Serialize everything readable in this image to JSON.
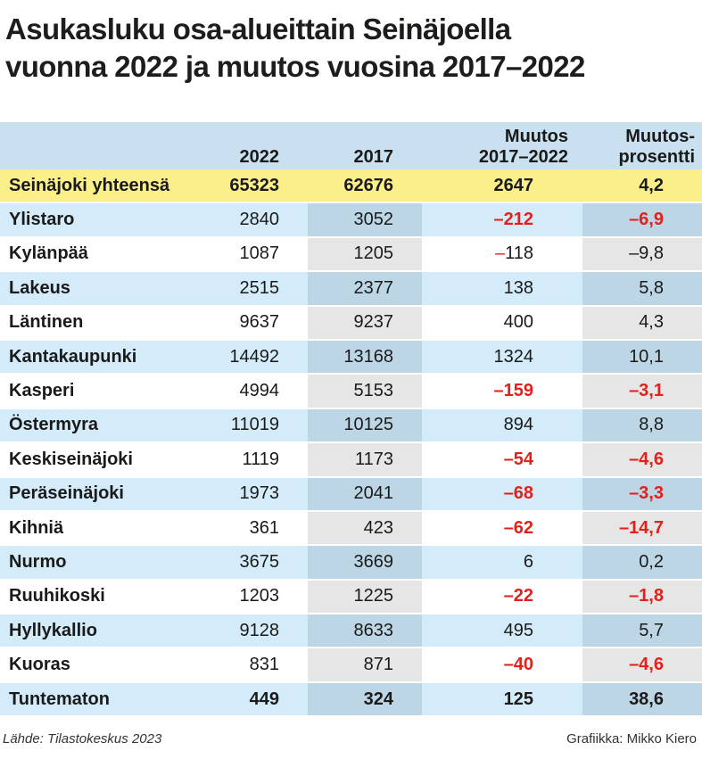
{
  "title_line1": "Asukasluku osa-alueittain Seinäjoella",
  "title_line2": "vuonna 2022 ja muutos vuosina 2017–2022",
  "colors": {
    "header": "#c8e0ef",
    "total_row": "#fbef8a",
    "blue_row": "#d4ecf9",
    "negative": "#e2211c"
  },
  "chart_data": {
    "type": "table",
    "columns": [
      "",
      "2022",
      "2017",
      "Muutos 2017–2022",
      "Muutos-prosentti"
    ],
    "header": {
      "c1": "2022",
      "c2": "2017",
      "c3a": "Muutos",
      "c3b": "2017–2022",
      "c4a": "Muutos-",
      "c4b": "prosentti"
    },
    "rows": [
      {
        "name": "Seinäjoki yhteensä",
        "y2022": "65323",
        "y2017": "62676",
        "change": "2647",
        "pct": "4,2",
        "style": "total"
      },
      {
        "name": "Ylistaro",
        "y2022": "2840",
        "y2017": "3052",
        "change": "–212",
        "pct": "–6,9",
        "style": "blue",
        "neg": true
      },
      {
        "name": "Kylänpää",
        "y2022": "1087",
        "y2017": "1205",
        "change": "–118",
        "pct": "–9,8",
        "style": "white",
        "neg_minus_only": true
      },
      {
        "name": "Lakeus",
        "y2022": "2515",
        "y2017": "2377",
        "change": "138",
        "pct": "5,8",
        "style": "blue"
      },
      {
        "name": "Läntinen",
        "y2022": "9637",
        "y2017": "9237",
        "change": "400",
        "pct": "4,3",
        "style": "white"
      },
      {
        "name": "Kantakaupunki",
        "y2022": "14492",
        "y2017": "13168",
        "change": "1324",
        "pct": "10,1",
        "style": "blue"
      },
      {
        "name": "Kasperi",
        "y2022": "4994",
        "y2017": "5153",
        "change": "–159",
        "pct": "–3,1",
        "style": "white",
        "neg": true
      },
      {
        "name": "Östermyra",
        "y2022": "11019",
        "y2017": "10125",
        "change": "894",
        "pct": "8,8",
        "style": "blue"
      },
      {
        "name": "Keskiseinäjoki",
        "y2022": "1119",
        "y2017": "1173",
        "change": "–54",
        "pct": "–4,6",
        "style": "white",
        "neg": true
      },
      {
        "name": "Peräseinäjoki",
        "y2022": "1973",
        "y2017": "2041",
        "change": "–68",
        "pct": "–3,3",
        "style": "blue",
        "neg": true
      },
      {
        "name": "Kihniä",
        "y2022": "361",
        "y2017": "423",
        "change": "–62",
        "pct": "–14,7",
        "style": "white",
        "neg": true
      },
      {
        "name": "Nurmo",
        "y2022": "3675",
        "y2017": "3669",
        "change": "6",
        "pct": "0,2",
        "style": "blue"
      },
      {
        "name": "Ruuhikoski",
        "y2022": "1203",
        "y2017": "1225",
        "change": "–22",
        "pct": "–1,8",
        "style": "white",
        "neg": true
      },
      {
        "name": "Hyllykallio",
        "y2022": "9128",
        "y2017": "8633",
        "change": "495",
        "pct": "5,7",
        "style": "blue"
      },
      {
        "name": "Kuoras",
        "y2022": "831",
        "y2017": "871",
        "change": "–40",
        "pct": "–4,6",
        "style": "white",
        "neg": true
      },
      {
        "name": "Tuntematon",
        "y2022": "449",
        "y2017": "324",
        "change": "125",
        "pct": "38,6",
        "style": "blue",
        "bold": true
      }
    ]
  },
  "footer": {
    "source": "Lähde: Tilastokeskus 2023",
    "credit": "Grafiikka: Mikko Kiero"
  }
}
